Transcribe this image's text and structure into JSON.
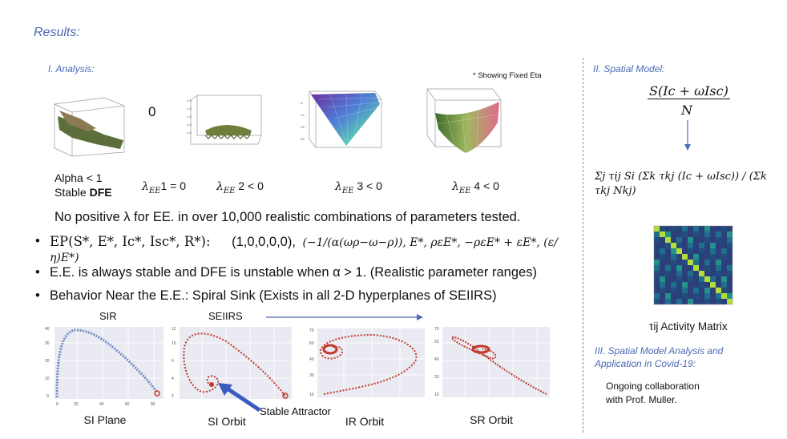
{
  "section_title": "Results:",
  "analysis": {
    "title": "I. Analysis:",
    "note": "* Showing Fixed Eta",
    "zero_label": "0",
    "alpha_line1": "Alpha < 1",
    "alpha_line2_prefix": "Stable ",
    "alpha_line2_bold": "DFE",
    "lambda_sym": "λ",
    "lambda_sub": "EE",
    "lambda_labels": [
      "1 = 0",
      "2 < 0",
      "3 < 0",
      "4 < 0"
    ],
    "no_positive": "No positive λ for EE. in over 10,000 realistic combinations of parameters tested."
  },
  "bullets": {
    "ep_prefix": "EP(S*, E*, Ic*, Isc*, R*):",
    "ep_value1": "(1,0,0,0,0),",
    "ep_value2": "(−1/(α(ωρ−ω−ρ)), E*, ρεE*, −ρεE* + εE*, (ε/η)E*)",
    "stable_text": "E.E. is always stable and DFE is unstable when α > 1. (Realistic parameter ranges)",
    "behavior_text": "Behavior Near the E.E.: Spiral Sink (Exists in all 2-D hyperplanes of SEIIRS)"
  },
  "plots": {
    "sir_label": "SIR",
    "seiirs_label": "SEIIRS",
    "si_plane": "SI Plane",
    "si_orbit": "SI Orbit",
    "ir_orbit": "IR Orbit",
    "sr_orbit": "SR Orbit",
    "stable_attractor": "Stable Attractor"
  },
  "spatial": {
    "title": "II. Spatial Model:",
    "numerator": "S(Ic + ωIsc)",
    "denominator": "N",
    "sum_formula": "Σj τij Si (Σk τkj (Ic + ωIsc)) / (Σk τkj Nkj)",
    "matrix_caption": "τij Activity Matrix",
    "analysis_title_line1": "III. Spatial Model Analysis and",
    "analysis_title_line2": "Application in Covid-19:",
    "collab_line1": "Ongoing collaboration",
    "collab_line2": "with Prof. Muller."
  },
  "colors": {
    "accent_blue": "#4a69b8",
    "divider_green": "#6aa84f",
    "orbit_red": "#c0392b",
    "si_blue": "#6f89c9"
  }
}
